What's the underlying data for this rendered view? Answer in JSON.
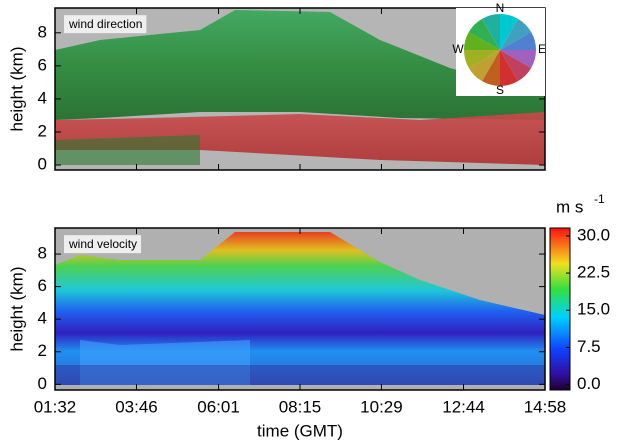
{
  "chart_data": [
    {
      "type": "heatmap",
      "title": "wind direction",
      "ylabel": "height (km)",
      "ylim": [
        -0.3,
        9.5
      ],
      "yticks": [
        0,
        2,
        4,
        6,
        8
      ],
      "xlim": [
        1.533,
        14.967
      ],
      "xticks": [
        1.533,
        3.767,
        6.017,
        8.25,
        10.483,
        12.733,
        14.967
      ],
      "compass": [
        "N",
        "E",
        "S",
        "W"
      ]
    },
    {
      "type": "heatmap",
      "title": "wind velocity",
      "ylabel": "height (km)",
      "xlabel": "time (GMT)",
      "ylim": [
        -0.35,
        9.6
      ],
      "yticks": [
        0,
        2,
        4,
        6,
        8
      ],
      "xlim": [
        1.533,
        14.967
      ],
      "xticks": [
        {
          "value": 1.533,
          "label": "01:32"
        },
        {
          "value": 3.767,
          "label": "03:46"
        },
        {
          "value": 6.017,
          "label": "06:01"
        },
        {
          "value": 8.25,
          "label": "08:15"
        },
        {
          "value": 10.483,
          "label": "10:29"
        },
        {
          "value": 12.733,
          "label": "12:44"
        },
        {
          "value": 14.967,
          "label": "14:58"
        }
      ],
      "colorbar": {
        "unit": "m s",
        "unit_exponent": "-1",
        "lim": [
          -1.1,
          31.6
        ],
        "ticks": [
          {
            "value": 0,
            "label": "0.0"
          },
          {
            "value": 7.5,
            "label": "7.5"
          },
          {
            "value": 15,
            "label": "15.0"
          },
          {
            "value": 22.5,
            "label": "22.5"
          },
          {
            "value": 30,
            "label": "30.0"
          }
        ]
      }
    }
  ]
}
